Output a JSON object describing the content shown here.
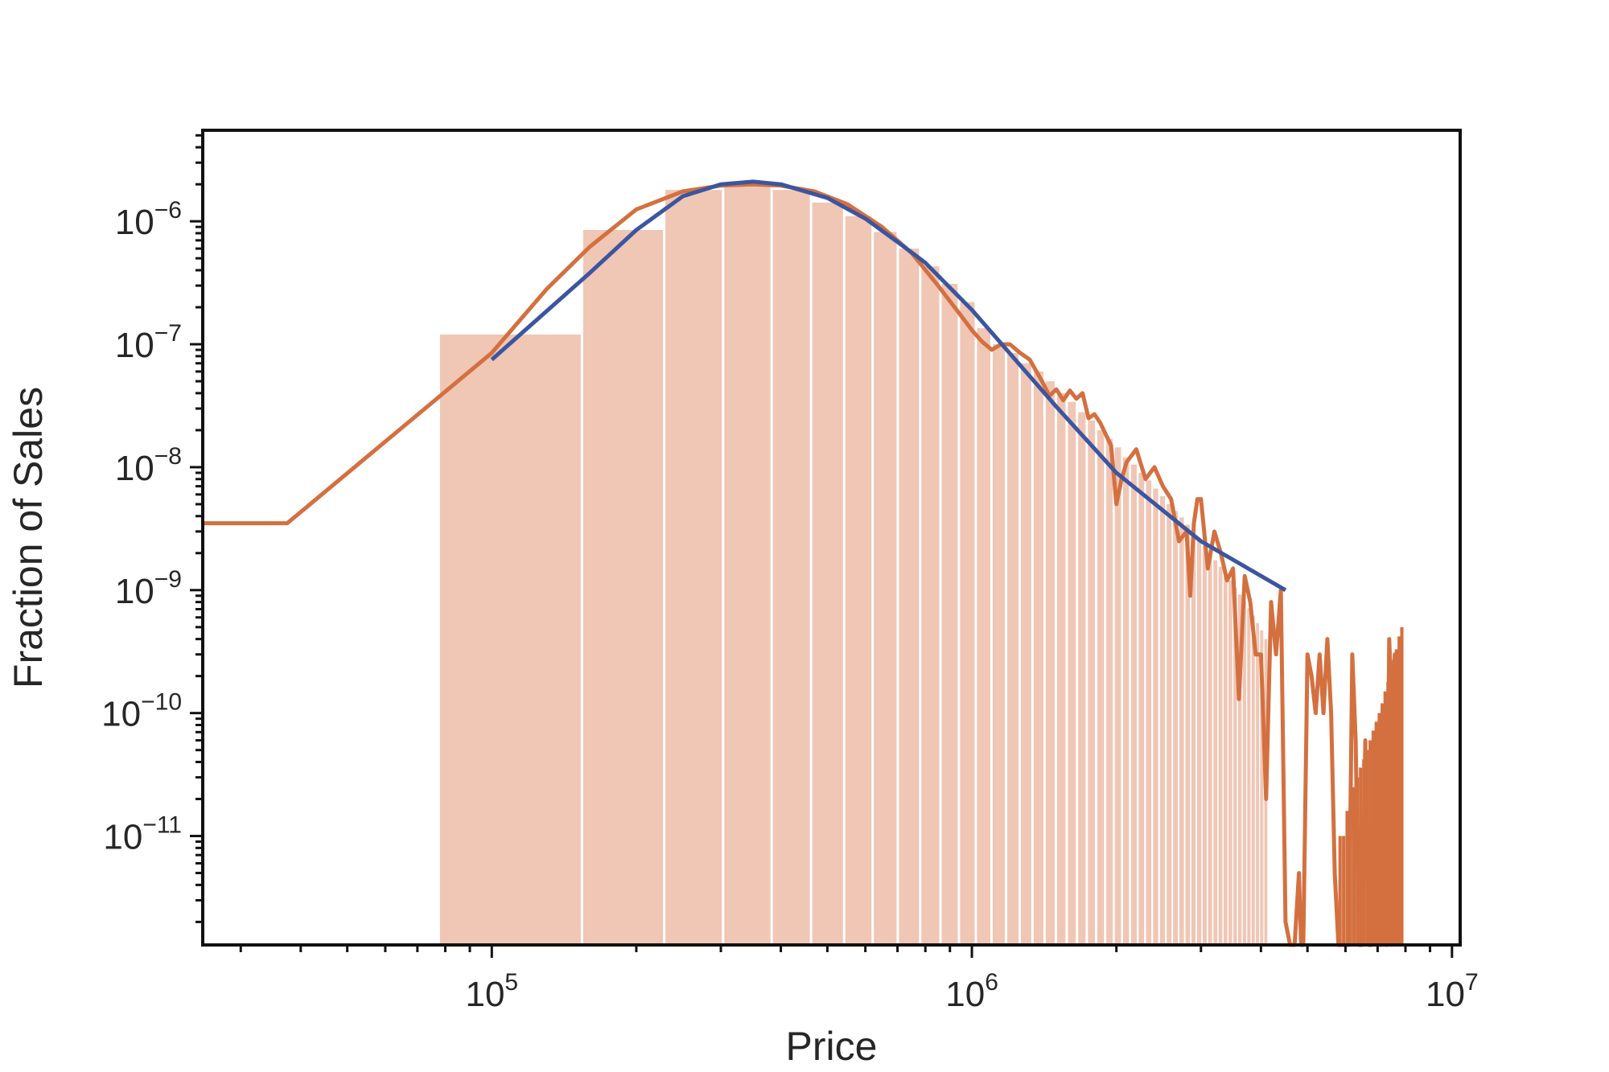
{
  "chart_data": {
    "type": "bar",
    "title": "",
    "xlabel": "Price",
    "ylabel": "Fraction of Sales",
    "x_scale": "log",
    "y_scale": "log",
    "xlim": [
      25000,
      10400000
    ],
    "ylim": [
      1.3e-12,
      5.5e-06
    ],
    "grid": false,
    "legend": "none",
    "x_ticks": [
      {
        "value": 100000,
        "base": "10",
        "exp": "5"
      },
      {
        "value": 1000000,
        "base": "10",
        "exp": "6"
      },
      {
        "value": 10000000,
        "base": "10",
        "exp": "7"
      }
    ],
    "y_ticks": [
      {
        "value": 1e-11,
        "base": "10",
        "exp": "−11"
      },
      {
        "value": 1e-10,
        "base": "10",
        "exp": "−10"
      },
      {
        "value": 1e-09,
        "base": "10",
        "exp": "−9"
      },
      {
        "value": 1e-08,
        "base": "10",
        "exp": "−8"
      },
      {
        "value": 1e-07,
        "base": "10",
        "exp": "−7"
      },
      {
        "value": 1e-06,
        "base": "10",
        "exp": "−6"
      }
    ],
    "colors": {
      "bars": "#f0c6b5",
      "bars_tail": "#d4703f",
      "empirical_line": "#d4703f",
      "fit_line": "#3b55a0",
      "axes": "#111111"
    },
    "histogram": {
      "edges": [
        78000,
        155000,
        230000,
        305000,
        385000,
        465000,
        545000,
        625000,
        705000,
        785000,
        865000,
        945000,
        1025000,
        1105000,
        1185000,
        1265000,
        1345000,
        1425000,
        1505000,
        1585000,
        1665000,
        1745000,
        1825000,
        1905000,
        1985000,
        2065000,
        2145000,
        2225000,
        2305000,
        2385000,
        2465000,
        2545000,
        2625000,
        2705000,
        2785000,
        2865000,
        2945000,
        3025000,
        3105000,
        3185000,
        3265000,
        3345000,
        3425000,
        3505000,
        3585000,
        3665000,
        3745000,
        3825000,
        3905000,
        3985000,
        4065000,
        4145000
      ],
      "values": [
        1.2e-07,
        8.5e-07,
        1.8e-06,
        1.95e-06,
        1.8e-06,
        1.42e-06,
        1.1e-06,
        8.2e-07,
        6e-07,
        4.3e-07,
        3.1e-07,
        2.2e-07,
        1.35e-07,
        1e-07,
        8.5e-08,
        7e-08,
        6e-08,
        5e-08,
        4e-08,
        3.4e-08,
        2.8e-08,
        2.4e-08,
        2e-08,
        1.7e-08,
        1.45e-08,
        1.2e-08,
        1.05e-08,
        9e-09,
        7.8e-09,
        6.7e-09,
        5.8e-09,
        5e-09,
        4.4e-09,
        3.9e-09,
        3.4e-09,
        3e-09,
        2.6e-09,
        2.3e-09,
        2e-09,
        1.75e-09,
        1.55e-09,
        1.35e-09,
        1.2e-09,
        1.05e-09,
        9.2e-10,
        8.1e-10,
        7.1e-10,
        6.2e-10,
        5.4e-10,
        4.7e-10,
        4e-10
      ]
    },
    "tail_bars": {
      "x": [
        5800000,
        5900000,
        6000000,
        6100000,
        6200000,
        6300000,
        6400000,
        6500000,
        6600000,
        6700000,
        6800000,
        6900000,
        7000000,
        7100000,
        7200000,
        7300000,
        7400000,
        7500000,
        7600000,
        7700000,
        7800000
      ],
      "values": [
        1e-11,
        1e-11,
        1.6e-11,
        2e-11,
        2.5e-11,
        3e-11,
        3.6e-11,
        4.2e-11,
        5e-11,
        6e-11,
        7.2e-11,
        8.5e-11,
        1e-10,
        1.2e-10,
        1.5e-10,
        1.8e-10,
        2.2e-10,
        2.7e-10,
        3.3e-10,
        4.2e-10,
        5e-10
      ]
    },
    "series": [
      {
        "x": [
          25000,
          37500,
          100000,
          130000,
          160000,
          200000,
          250000,
          300000,
          350000,
          400000,
          470000,
          550000,
          650000,
          750000,
          850000,
          950000,
          1000000,
          1050000,
          1100000,
          1150000,
          1200000,
          1260000,
          1320000,
          1400000,
          1450000,
          1500000,
          1550000,
          1600000,
          1650000,
          1700000,
          1750000,
          1800000,
          1850000,
          1950000,
          2000000,
          2050000,
          2100000,
          2200000,
          2300000,
          2400000,
          2500000,
          2600000,
          2700000,
          2800000,
          2850000,
          2900000,
          2950000,
          3000000,
          3100000,
          3200000,
          3300000,
          3400000,
          3500000,
          3600000,
          3700000,
          3800000,
          3900000,
          4000000,
          4100000,
          4200000,
          4300000,
          4400000,
          4500000,
          4600000,
          4700000,
          4800000,
          4850000,
          4900000,
          5000000,
          5100000,
          5200000,
          5300000,
          5400000,
          5500000,
          5600000,
          5700000,
          5800000,
          5900000,
          6000000,
          6100000,
          6200000,
          6300000,
          6400000,
          6500000,
          6600000,
          6700000,
          6800000,
          6900000,
          7000000,
          7100000,
          7200000,
          7300000,
          7400000,
          7500000,
          7600000,
          7700000,
          7800000
        ],
        "y": [
          3.5e-09,
          3.5e-09,
          8.5e-08,
          2.8e-07,
          6.2e-07,
          1.25e-06,
          1.75e-06,
          1.95e-06,
          2e-06,
          1.95e-06,
          1.75e-06,
          1.38e-06,
          9e-07,
          5.5e-07,
          3e-07,
          1.7e-07,
          1.3e-07,
          1.05e-07,
          9e-08,
          1e-07,
          1e-07,
          8.5e-08,
          7.5e-08,
          5e-08,
          3.8e-08,
          4.3e-08,
          3.5e-08,
          4.2e-08,
          3.6e-08,
          4e-08,
          2.5e-08,
          2.7e-08,
          2.3e-08,
          1.5e-08,
          5e-09,
          8e-09,
          1.1e-08,
          1.4e-08,
          8e-09,
          1e-08,
          7e-09,
          5.5e-09,
          2.5e-09,
          3e-09,
          9e-10,
          3.5e-09,
          5.5e-09,
          5.5e-09,
          1.5e-09,
          3e-09,
          2e-09,
          1.2e-09,
          1.5e-09,
          1.3e-10,
          1.3e-09,
          8e-10,
          3e-10,
          3e-10,
          2e-11,
          8e-10,
          3e-10,
          1e-09,
          2e-12,
          1e-12,
          1e-12,
          5e-12,
          1e-12,
          1e-12,
          3e-10,
          2e-10,
          1e-10,
          3e-10,
          1e-10,
          4e-10,
          1e-10,
          5e-12,
          1e-12,
          1e-12,
          1e-12,
          1e-12,
          3e-10,
          6e-11,
          1e-12,
          1e-12,
          6e-11,
          1e-12,
          1e-12,
          4e-11,
          2.5e-11,
          1e-12,
          2e-11,
          1e-12,
          4e-10,
          1e-10,
          3e-10,
          7e-11,
          1.2e-10
        ]
      },
      {
        "x": [
          100000,
          160000,
          200000,
          250000,
          300000,
          350000,
          400000,
          500000,
          600000,
          700000,
          800000,
          1000000,
          1500000,
          2000000,
          3000000,
          4500000
        ],
        "y": [
          7.5e-08,
          3.8e-07,
          8.5e-07,
          1.6e-06,
          2e-06,
          2.1e-06,
          2e-06,
          1.55e-06,
          1.05e-06,
          6.8e-07,
          4.6e-07,
          1.9e-07,
          3.1e-08,
          9e-09,
          2.5e-09,
          1e-09
        ]
      }
    ]
  }
}
